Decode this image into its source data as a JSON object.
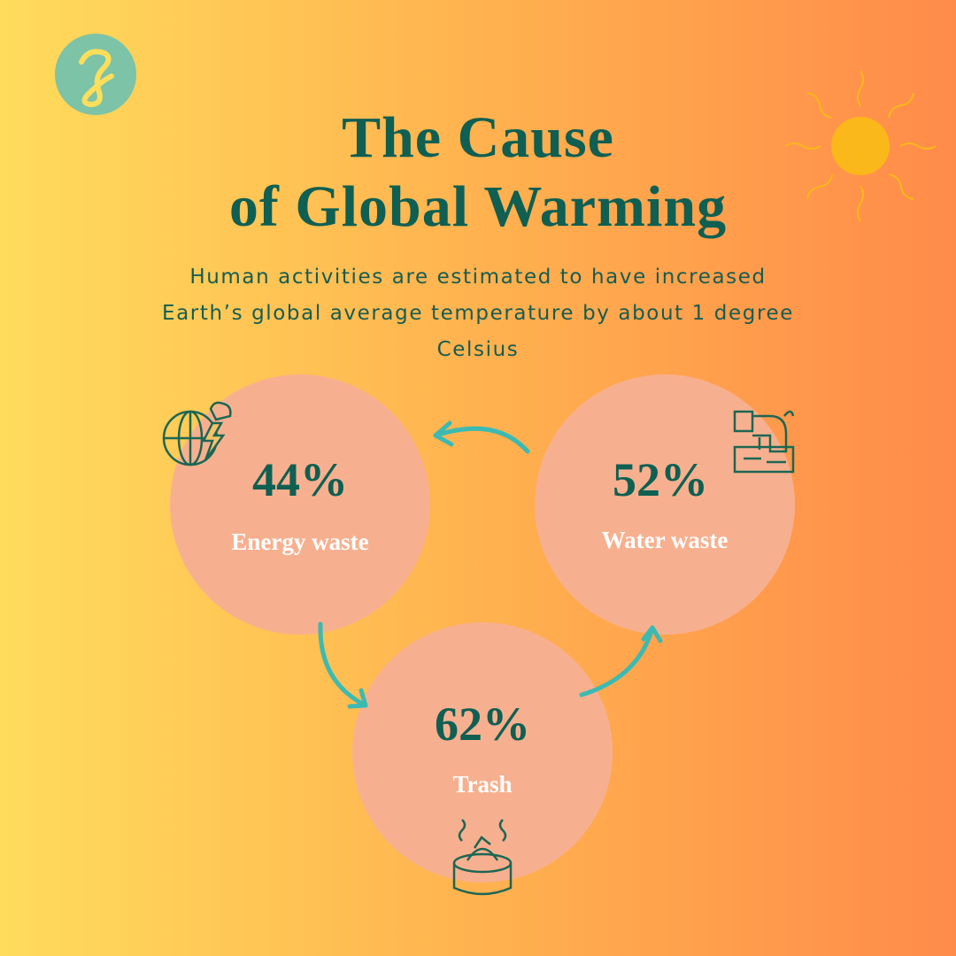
{
  "header": {
    "title_lines": [
      "The Cause",
      "of Global Warming"
    ],
    "subtitle_lines": [
      "Human activities are estimated to have increased",
      "Earth’s global average temperature by about 1 degree",
      "Celsius"
    ]
  },
  "items": [
    {
      "value": "44%",
      "label": "Energy waste"
    },
    {
      "value": "52%",
      "label": "Water waste"
    },
    {
      "value": "62%",
      "label": "Trash"
    }
  ]
}
